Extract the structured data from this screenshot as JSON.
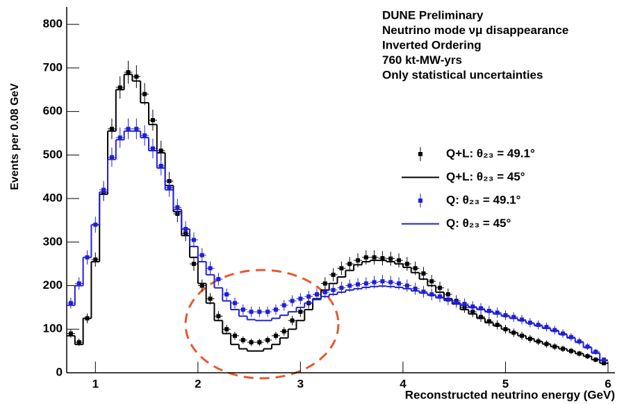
{
  "chart_data": {
    "type": "histogram",
    "xlabel": "Reconstructed neutrino energy (GeV)",
    "ylabel": "Events per 0.08 GeV",
    "annotation": [
      "DUNE Preliminary",
      "Neutrino mode νμ disappearance",
      "Inverted Ordering",
      "760 kt-MW-yrs",
      "Only statistical uncertainties"
    ],
    "xlim": [
      0.72,
      6
    ],
    "xticks": [
      1,
      2,
      3,
      4,
      5,
      6
    ],
    "ylim": [
      0,
      840
    ],
    "yticks": [
      0,
      100,
      200,
      300,
      400,
      500,
      600,
      700,
      800
    ],
    "bins": [
      0.72,
      0.8,
      0.88,
      0.96,
      1.04,
      1.12,
      1.2,
      1.28,
      1.36,
      1.44,
      1.52,
      1.6,
      1.68,
      1.76,
      1.84,
      1.92,
      2.0,
      2.08,
      2.16,
      2.24,
      2.32,
      2.4,
      2.48,
      2.56,
      2.64,
      2.72,
      2.8,
      2.88,
      2.96,
      3.04,
      3.12,
      3.2,
      3.28,
      3.36,
      3.44,
      3.52,
      3.6,
      3.68,
      3.76,
      3.84,
      3.92,
      4.0,
      4.08,
      4.16,
      4.24,
      4.32,
      4.4,
      4.48,
      4.56,
      4.64,
      4.72,
      4.8,
      4.88,
      4.96,
      5.04,
      5.12,
      5.2,
      5.28,
      5.36,
      5.44,
      5.52,
      5.6,
      5.68,
      5.76,
      5.84,
      5.92,
      6.0
    ],
    "series": [
      {
        "name": "Q+L: θ₂₃ = 49.1°",
        "color": "#000000",
        "drawstyle": "markers",
        "values": [
          90,
          70,
          125,
          260,
          415,
          560,
          655,
          690,
          680,
          640,
          580,
          510,
          440,
          365,
          320,
          250,
          200,
          170,
          130,
          100,
          85,
          75,
          70,
          70,
          75,
          85,
          95,
          120,
          140,
          160,
          180,
          205,
          225,
          240,
          250,
          258,
          265,
          265,
          263,
          262,
          258,
          250,
          240,
          228,
          210,
          195,
          180,
          165,
          150,
          140,
          128,
          118,
          110,
          100,
          92,
          85,
          78,
          72,
          66,
          60,
          55,
          50,
          44,
          38,
          30,
          22
        ]
      },
      {
        "name": "Q+L: θ₂₃ = 45°",
        "color": "#000000",
        "drawstyle": "steps",
        "values": [
          85,
          65,
          125,
          255,
          410,
          555,
          650,
          685,
          670,
          620,
          570,
          505,
          430,
          370,
          315,
          265,
          205,
          160,
          120,
          90,
          65,
          55,
          50,
          50,
          55,
          65,
          80,
          100,
          120,
          145,
          170,
          190,
          205,
          220,
          235,
          248,
          255,
          258,
          258,
          255,
          250,
          242,
          230,
          215,
          200,
          185,
          170,
          158,
          145,
          135,
          125,
          115,
          108,
          100,
          92,
          85,
          78,
          72,
          66,
          60,
          55,
          50,
          44,
          38,
          30,
          22
        ]
      },
      {
        "name": "Q: θ₂₃ = 49.1°",
        "color": "#1f1fd6",
        "drawstyle": "markers",
        "values": [
          160,
          205,
          265,
          340,
          420,
          495,
          540,
          560,
          560,
          545,
          515,
          475,
          425,
          380,
          330,
          305,
          270,
          240,
          215,
          180,
          160,
          145,
          140,
          140,
          140,
          145,
          155,
          165,
          170,
          175,
          180,
          185,
          190,
          195,
          200,
          203,
          205,
          208,
          210,
          208,
          205,
          200,
          193,
          186,
          180,
          175,
          168,
          162,
          158,
          152,
          148,
          142,
          138,
          132,
          128,
          122,
          115,
          110,
          105,
          98,
          90,
          82,
          72,
          60,
          48,
          30
        ]
      },
      {
        "name": "Q: θ₂₃ = 45°",
        "color": "#1f1fd6",
        "drawstyle": "steps",
        "values": [
          155,
          200,
          265,
          340,
          415,
          490,
          535,
          555,
          555,
          540,
          510,
          470,
          420,
          375,
          330,
          290,
          255,
          225,
          195,
          165,
          145,
          130,
          122,
          120,
          120,
          125,
          132,
          140,
          150,
          160,
          168,
          175,
          180,
          185,
          190,
          193,
          196,
          198,
          199,
          198,
          196,
          193,
          188,
          183,
          178,
          172,
          166,
          160,
          155,
          150,
          145,
          140,
          135,
          130,
          125,
          120,
          114,
          108,
          102,
          96,
          88,
          80,
          70,
          58,
          45,
          28
        ]
      }
    ]
  }
}
